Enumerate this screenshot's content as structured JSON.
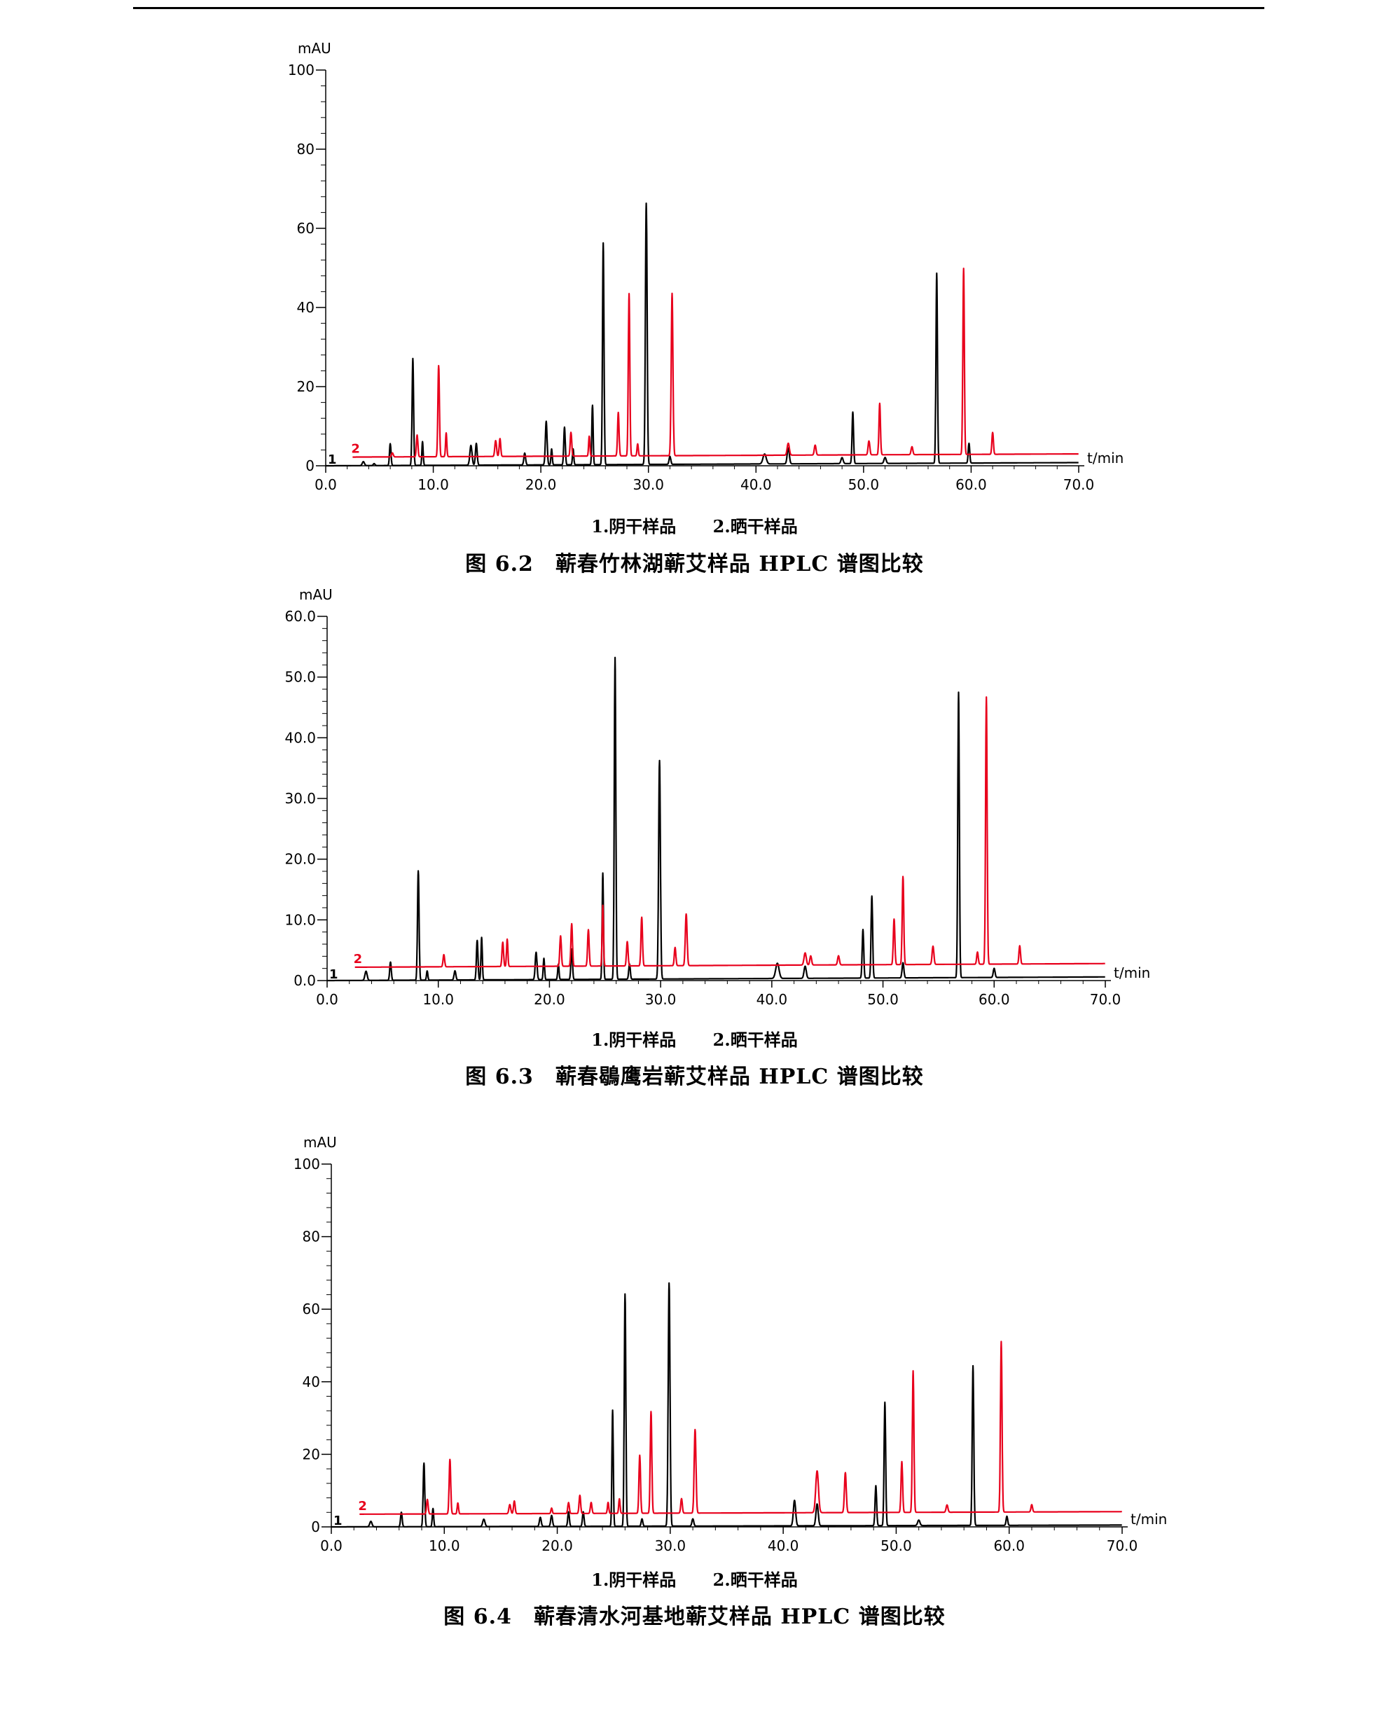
{
  "figures": [
    {
      "legend": [
        "1.阴干样品",
        "2.晒干样品"
      ],
      "caption": "图 6.2　蕲春竹林湖蕲艾样品 HPLC 谱图比较"
    },
    {
      "legend": [
        "1.阴干样品",
        "2.晒干样品"
      ],
      "caption": "图 6.3　蕲春鶡鹰岩蕲艾样品 HPLC 谱图比较"
    },
    {
      "legend": [
        "1.阴干样品",
        "2.晒干样品"
      ],
      "caption": "图 6.4　蕲春清水河基地蕲艾样品 HPLC 谱图比较"
    }
  ],
  "chart_data": [
    {
      "type": "line",
      "ylabel": "mAU",
      "xlabel": "t/min",
      "xlim": [
        0,
        70
      ],
      "ylim": [
        0,
        100
      ],
      "x_ticks": [
        "0.0",
        "10.0",
        "20.0",
        "30.0",
        "40.0",
        "50.0",
        "60.0",
        "70.0"
      ],
      "y_ticks": [
        "0",
        "20",
        "40",
        "60",
        "80",
        "100"
      ],
      "colors": {
        "series1": "#000000",
        "series2": "#e8001c"
      },
      "series": [
        {
          "name": "1",
          "baseline": [
            [
              0,
              0
            ],
            [
              70,
              0.8
            ]
          ],
          "peaks": [
            [
              3.5,
              1,
              0.1
            ],
            [
              4.5,
              0.5,
              0.08
            ],
            [
              6,
              5.5,
              0.07
            ],
            [
              8.1,
              27,
              0.07
            ],
            [
              9,
              6,
              0.06
            ],
            [
              13.5,
              5,
              0.1
            ],
            [
              14,
              5.5,
              0.08
            ],
            [
              18.5,
              3,
              0.08
            ],
            [
              20.5,
              11,
              0.08
            ],
            [
              21,
              4,
              0.06
            ],
            [
              22.2,
              9.5,
              0.07
            ],
            [
              23,
              4,
              0.06
            ],
            [
              24.8,
              15,
              0.06
            ],
            [
              25.8,
              56,
              0.07
            ],
            [
              29.8,
              66,
              0.08
            ],
            [
              32,
              2,
              0.08
            ],
            [
              40.8,
              2.5,
              0.15
            ],
            [
              43,
              4,
              0.1
            ],
            [
              48,
              1.5,
              0.1
            ],
            [
              49,
              13,
              0.07
            ],
            [
              52,
              1.5,
              0.1
            ],
            [
              56.8,
              48,
              0.07
            ],
            [
              59.8,
              5,
              0.07
            ]
          ]
        },
        {
          "name": "2",
          "baseline": [
            [
              2.5,
              2.2
            ],
            [
              70,
              3.0
            ]
          ],
          "peaks": [
            [
              6.2,
              1,
              0.08
            ],
            [
              8.5,
              5.5,
              0.07
            ],
            [
              10.5,
              23,
              0.07
            ],
            [
              11.2,
              6,
              0.06
            ],
            [
              15.8,
              4,
              0.08
            ],
            [
              16.2,
              4.5,
              0.07
            ],
            [
              22.8,
              6,
              0.07
            ],
            [
              24.5,
              5,
              0.06
            ],
            [
              27.2,
              11,
              0.07
            ],
            [
              28.2,
              41,
              0.07
            ],
            [
              29,
              3,
              0.06
            ],
            [
              32.2,
              41,
              0.08
            ],
            [
              43,
              3,
              0.1
            ],
            [
              45.5,
              2.5,
              0.08
            ],
            [
              50.5,
              3.5,
              0.08
            ],
            [
              51.5,
              13,
              0.07
            ],
            [
              54.5,
              2,
              0.08
            ],
            [
              59.3,
              47,
              0.07
            ],
            [
              62,
              5.5,
              0.07
            ]
          ]
        }
      ]
    },
    {
      "type": "line",
      "ylabel": "mAU",
      "xlabel": "t/min",
      "xlim": [
        0,
        70
      ],
      "ylim": [
        0,
        60
      ],
      "x_ticks": [
        "0.0",
        "10.0",
        "20.0",
        "30.0",
        "40.0",
        "50.0",
        "60.0",
        "70.0"
      ],
      "y_ticks": [
        "0.0",
        "10.0",
        "20.0",
        "30.0",
        "40.0",
        "50.0",
        "60.0"
      ],
      "colors": {
        "series1": "#000000",
        "series2": "#e8001c"
      },
      "series": [
        {
          "name": "1",
          "baseline": [
            [
              0,
              0
            ],
            [
              70,
              0.6
            ]
          ],
          "peaks": [
            [
              3.5,
              1.5,
              0.1
            ],
            [
              5.7,
              3,
              0.07
            ],
            [
              8.2,
              18,
              0.07
            ],
            [
              9,
              1.5,
              0.06
            ],
            [
              11.5,
              1.5,
              0.08
            ],
            [
              13.5,
              6.5,
              0.07
            ],
            [
              13.9,
              7,
              0.06
            ],
            [
              18.8,
              4.5,
              0.08
            ],
            [
              19.5,
              3.5,
              0.06
            ],
            [
              20.8,
              2.5,
              0.06
            ],
            [
              22,
              5,
              0.07
            ],
            [
              24.8,
              17.5,
              0.06
            ],
            [
              25.9,
              53,
              0.07
            ],
            [
              27.2,
              2.5,
              0.07
            ],
            [
              29.9,
              36,
              0.08
            ],
            [
              40.5,
              2.5,
              0.15
            ],
            [
              43,
              2,
              0.1
            ],
            [
              48.2,
              8,
              0.07
            ],
            [
              49,
              13.5,
              0.07
            ],
            [
              51.8,
              2.5,
              0.08
            ],
            [
              56.8,
              47,
              0.07
            ],
            [
              60,
              1.5,
              0.08
            ]
          ]
        },
        {
          "name": "2",
          "baseline": [
            [
              2.5,
              2.2
            ],
            [
              70,
              2.8
            ]
          ],
          "peaks": [
            [
              10.5,
              2,
              0.07
            ],
            [
              15.8,
              4,
              0.07
            ],
            [
              16.2,
              4.5,
              0.06
            ],
            [
              21,
              5,
              0.07
            ],
            [
              22,
              7,
              0.07
            ],
            [
              23.5,
              6,
              0.07
            ],
            [
              24.8,
              10,
              0.06
            ],
            [
              27,
              4,
              0.07
            ],
            [
              28.3,
              8,
              0.07
            ],
            [
              31.3,
              3,
              0.07
            ],
            [
              32.3,
              8.5,
              0.08
            ],
            [
              43,
              2,
              0.1
            ],
            [
              43.5,
              1.5,
              0.08
            ],
            [
              46,
              1.5,
              0.08
            ],
            [
              51,
              7.5,
              0.07
            ],
            [
              51.8,
              14.5,
              0.07
            ],
            [
              54.5,
              3,
              0.08
            ],
            [
              58.5,
              2,
              0.07
            ],
            [
              59.3,
              44,
              0.07
            ],
            [
              62.3,
              3,
              0.07
            ]
          ]
        }
      ]
    },
    {
      "type": "line",
      "ylabel": "mAU",
      "xlabel": "t/min",
      "xlim": [
        0,
        70
      ],
      "ylim": [
        0,
        100
      ],
      "x_ticks": [
        "0.0",
        "10.0",
        "20.0",
        "30.0",
        "40.0",
        "50.0",
        "60.0",
        "70.0"
      ],
      "y_ticks": [
        "0",
        "20",
        "40",
        "60",
        "80",
        "100"
      ],
      "colors": {
        "series1": "#000000",
        "series2": "#e8001c"
      },
      "series": [
        {
          "name": "1",
          "baseline": [
            [
              0,
              0
            ],
            [
              70,
              0.5
            ]
          ],
          "peaks": [
            [
              3.5,
              1.5,
              0.1
            ],
            [
              6.2,
              4,
              0.07
            ],
            [
              8.2,
              17.5,
              0.07
            ],
            [
              9,
              5,
              0.06
            ],
            [
              13.5,
              2,
              0.1
            ],
            [
              18.5,
              2.5,
              0.08
            ],
            [
              19.5,
              3,
              0.08
            ],
            [
              21,
              4,
              0.07
            ],
            [
              22.3,
              4,
              0.07
            ],
            [
              24.9,
              32,
              0.06
            ],
            [
              26,
              64,
              0.07
            ],
            [
              27.5,
              2,
              0.07
            ],
            [
              29.9,
              67,
              0.08
            ],
            [
              32,
              2,
              0.08
            ],
            [
              41,
              7,
              0.1
            ],
            [
              43,
              6,
              0.1
            ],
            [
              48.2,
              11,
              0.07
            ],
            [
              49,
              34,
              0.07
            ],
            [
              52,
              1.5,
              0.1
            ],
            [
              56.8,
              44,
              0.07
            ],
            [
              59.8,
              2.5,
              0.07
            ]
          ]
        },
        {
          "name": "2",
          "baseline": [
            [
              2.5,
              3.5
            ],
            [
              70,
              4.2
            ]
          ],
          "peaks": [
            [
              8.5,
              4,
              0.07
            ],
            [
              10.5,
              15,
              0.07
            ],
            [
              11.2,
              3,
              0.06
            ],
            [
              15.8,
              2.5,
              0.08
            ],
            [
              16.2,
              3.5,
              0.07
            ],
            [
              19.5,
              1.5,
              0.06
            ],
            [
              21,
              3,
              0.07
            ],
            [
              22,
              5,
              0.07
            ],
            [
              23,
              3,
              0.07
            ],
            [
              24.5,
              3,
              0.06
            ],
            [
              25.5,
              4,
              0.06
            ],
            [
              27.3,
              16,
              0.07
            ],
            [
              28.3,
              28,
              0.07
            ],
            [
              31,
              4,
              0.07
            ],
            [
              32.2,
              23,
              0.08
            ],
            [
              43,
              11.5,
              0.12
            ],
            [
              45.5,
              11,
              0.08
            ],
            [
              50.5,
              14,
              0.07
            ],
            [
              51.5,
              39,
              0.07
            ],
            [
              54.5,
              2,
              0.08
            ],
            [
              59.3,
              47,
              0.07
            ],
            [
              62,
              2,
              0.07
            ]
          ]
        }
      ]
    }
  ]
}
